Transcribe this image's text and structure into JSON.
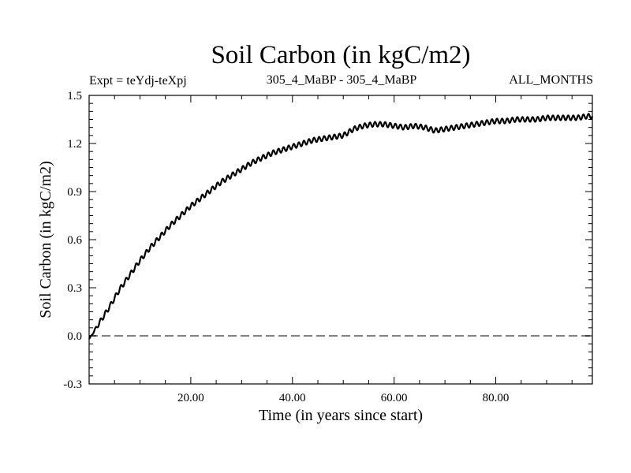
{
  "chart_data": {
    "type": "line",
    "title": "Soil Carbon (in kgC/m2)",
    "subtitle_left": "Expt = teYdj-teXpj",
    "subtitle_center": "305_4_MaBP - 305_4_MaBP",
    "subtitle_right": "ALL_MONTHS",
    "xlabel": "Time (in years since start)",
    "ylabel": "Soil Carbon (in kgC/m2)",
    "xlim": [
      0,
      99
    ],
    "ylim": [
      -0.3,
      1.5
    ],
    "x_ticks": [
      20,
      40,
      60,
      80
    ],
    "x_tick_labels": [
      "20.00",
      "40.00",
      "60.00",
      "80.00"
    ],
    "y_ticks": [
      -0.3,
      0.0,
      0.3,
      0.6,
      0.9,
      1.2,
      1.5
    ],
    "y_tick_labels": [
      "-0.3",
      "0.0",
      "0.3",
      "0.6",
      "0.9",
      "1.2",
      "1.5"
    ],
    "reference_line": {
      "y": 0.0,
      "style": "dashed",
      "color": "#808080"
    },
    "series": [
      {
        "name": "Soil Carbon",
        "color": "#000000",
        "x": [
          0,
          2,
          4,
          6,
          8,
          10,
          12,
          14,
          16,
          18,
          20,
          22,
          24,
          26,
          28,
          30,
          32,
          34,
          36,
          38,
          40,
          42,
          44,
          46,
          48,
          50,
          52,
          54,
          56,
          58,
          60,
          62,
          64,
          66,
          68,
          70,
          72,
          74,
          76,
          78,
          80,
          82,
          84,
          86,
          88,
          90,
          92,
          94,
          96,
          98,
          99
        ],
        "y": [
          -0.02,
          0.08,
          0.18,
          0.29,
          0.38,
          0.47,
          0.55,
          0.62,
          0.69,
          0.75,
          0.81,
          0.86,
          0.91,
          0.96,
          1.0,
          1.04,
          1.08,
          1.11,
          1.14,
          1.16,
          1.18,
          1.2,
          1.22,
          1.23,
          1.24,
          1.25,
          1.29,
          1.31,
          1.32,
          1.32,
          1.31,
          1.3,
          1.31,
          1.3,
          1.28,
          1.29,
          1.3,
          1.31,
          1.32,
          1.33,
          1.34,
          1.34,
          1.35,
          1.35,
          1.35,
          1.36,
          1.36,
          1.36,
          1.36,
          1.37,
          1.37
        ],
        "oscillation": {
          "period_years": 1,
          "amplitude": 0.015
        }
      }
    ]
  }
}
